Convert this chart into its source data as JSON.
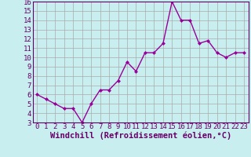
{
  "x": [
    0,
    1,
    2,
    3,
    4,
    5,
    6,
    7,
    8,
    9,
    10,
    11,
    12,
    13,
    14,
    15,
    16,
    17,
    18,
    19,
    20,
    21,
    22,
    23
  ],
  "y": [
    6.0,
    5.5,
    5.0,
    4.5,
    4.5,
    3.0,
    5.0,
    6.5,
    6.5,
    7.5,
    9.5,
    8.5,
    10.5,
    10.5,
    11.5,
    16.0,
    14.0,
    14.0,
    11.5,
    11.8,
    10.5,
    10.0,
    10.5,
    10.5
  ],
  "line_color": "#990099",
  "marker": "D",
  "marker_size": 2.5,
  "background_color": "#c8eef0",
  "grid_color": "#aaaaaa",
  "xlabel": "Windchill (Refroidissement éolien,°C)",
  "xlim": [
    -0.5,
    23.5
  ],
  "ylim": [
    3,
    16
  ],
  "yticks": [
    3,
    4,
    5,
    6,
    7,
    8,
    9,
    10,
    11,
    12,
    13,
    14,
    15,
    16
  ],
  "xticks": [
    0,
    1,
    2,
    3,
    4,
    5,
    6,
    7,
    8,
    9,
    10,
    11,
    12,
    13,
    14,
    15,
    16,
    17,
    18,
    19,
    20,
    21,
    22,
    23
  ],
  "tick_color": "#660066",
  "label_color": "#660066",
  "font_size_axis": 6.5,
  "font_size_xlabel": 7.5
}
